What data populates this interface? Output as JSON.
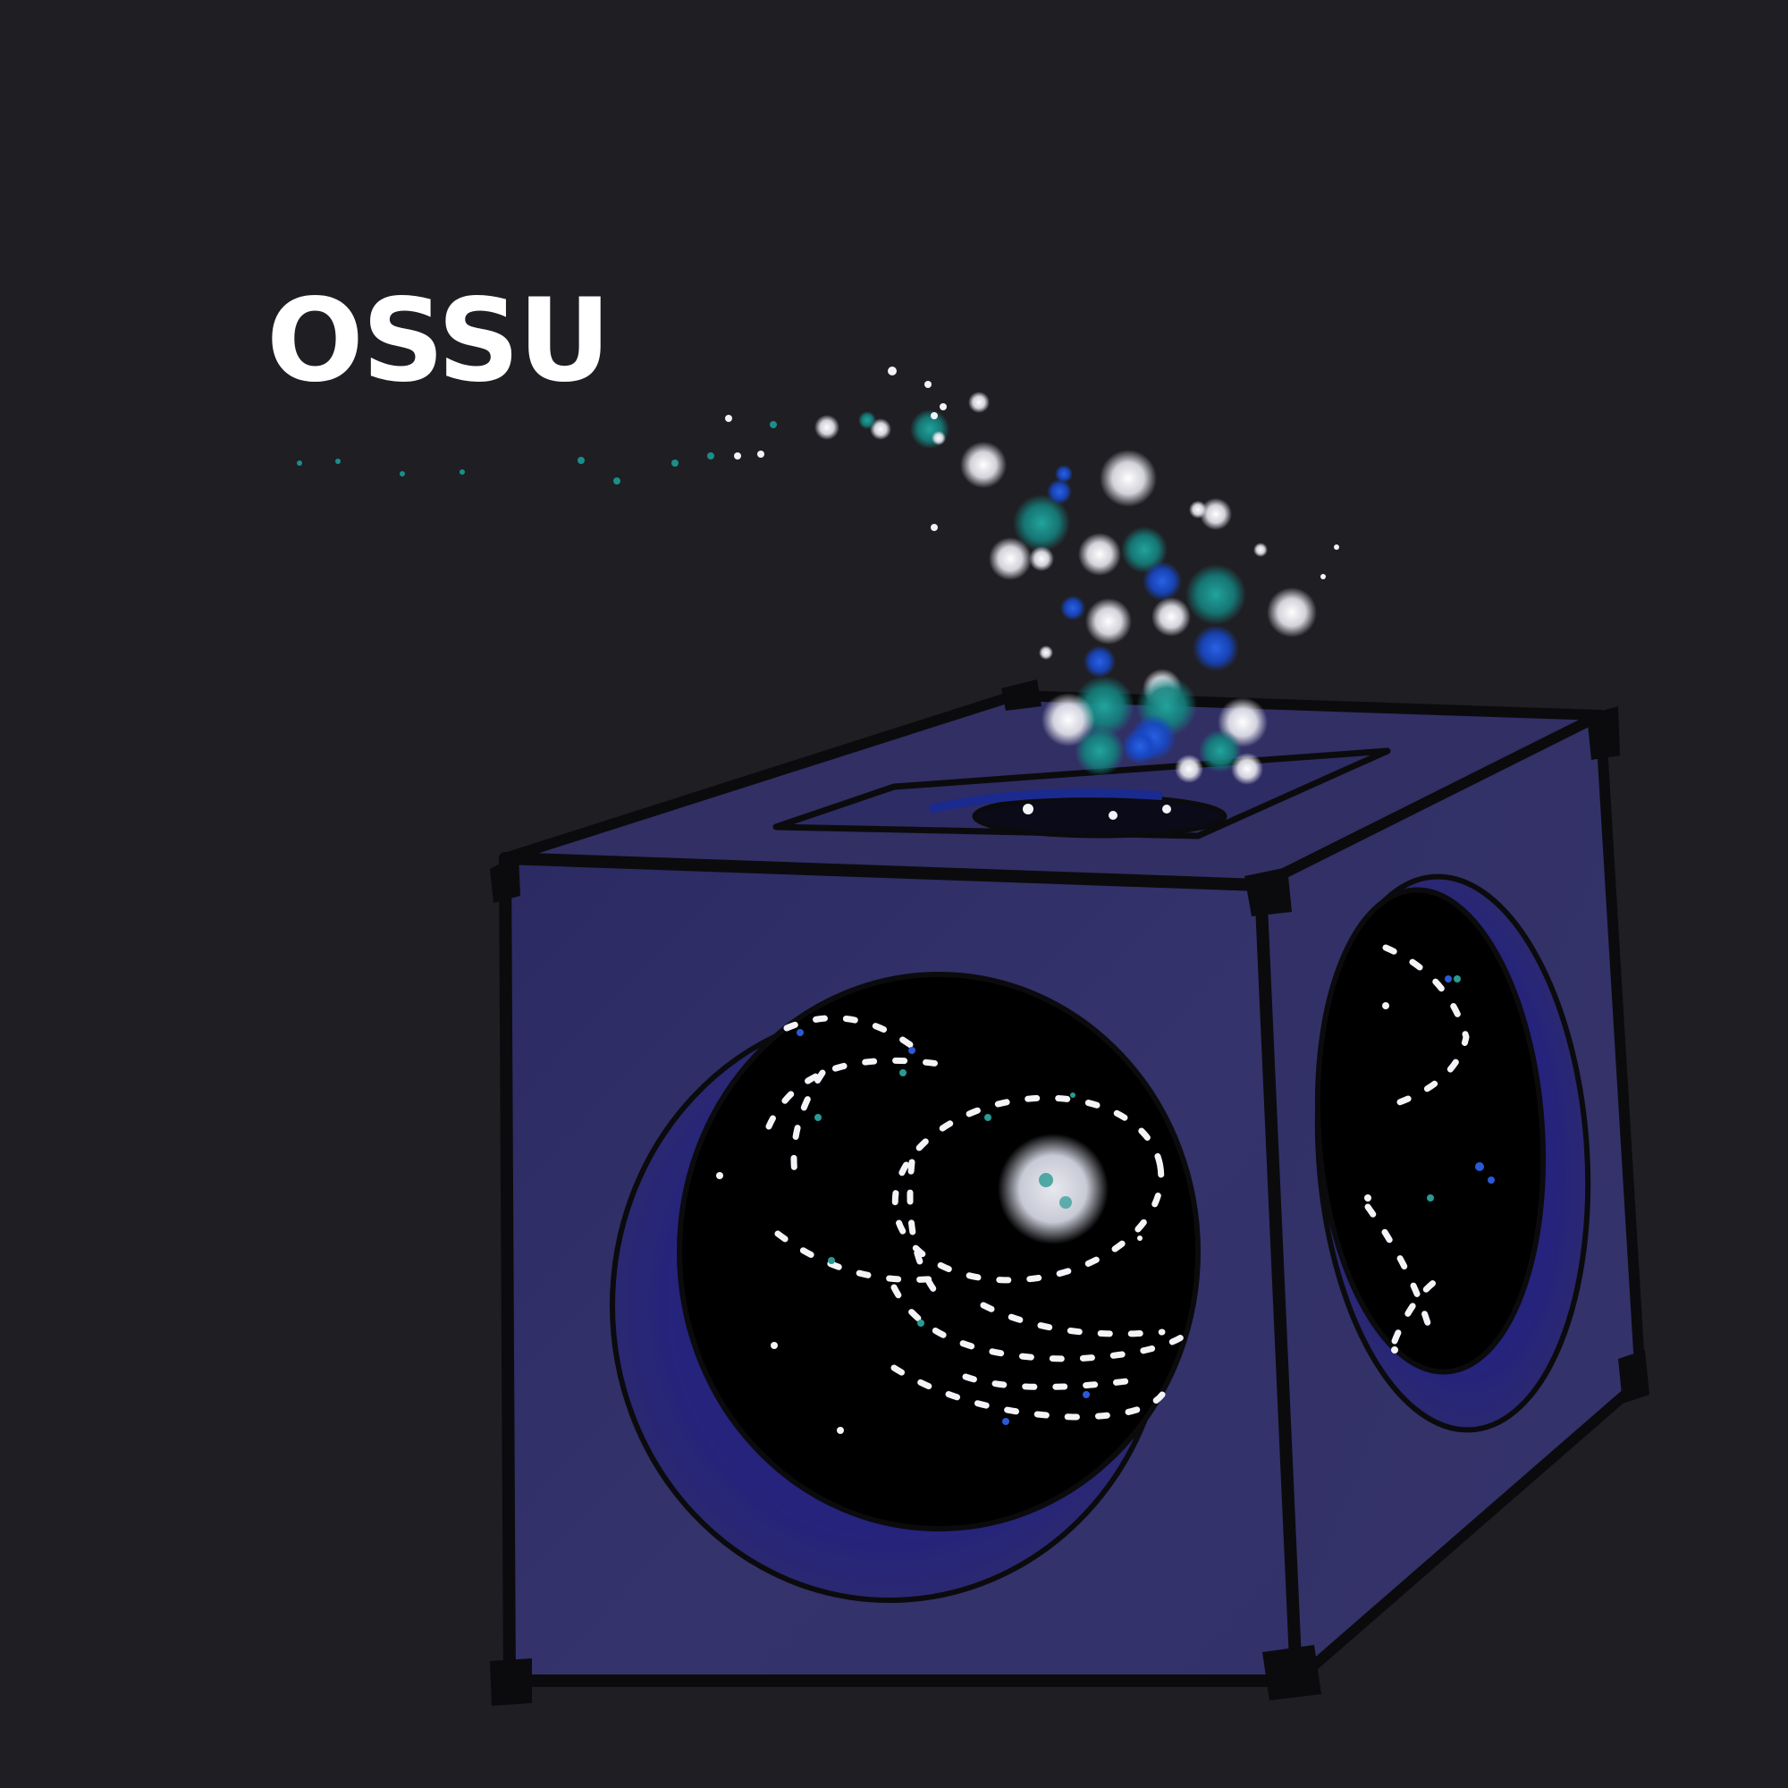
{
  "logo": {
    "text": "OSSU"
  },
  "colors": {
    "background": "#1f1e23",
    "cube_face": "#35336a",
    "cube_face_dark": "#2a2960",
    "cube_top": "#302e63",
    "outline": "#0b0b0d",
    "porthole_rim": "#26247a",
    "porthole_space": "#000000",
    "star_white": "#f4f4f8",
    "particle_teal": "#1a8f8a",
    "particle_blue": "#1a4fd0"
  }
}
